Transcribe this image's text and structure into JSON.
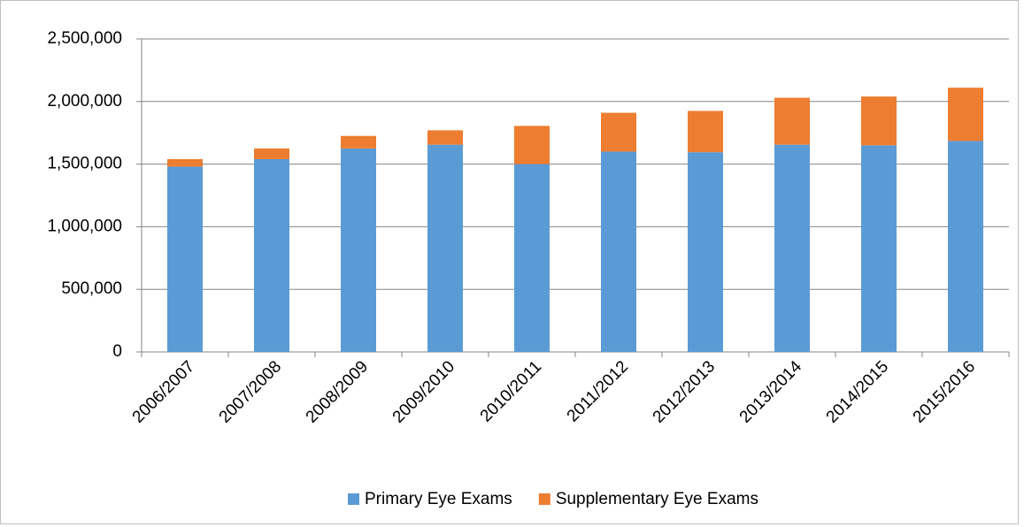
{
  "chart_data": {
    "type": "stacked-bar",
    "categories": [
      "2006/2007",
      "2007/2008",
      "2008/2009",
      "2009/2010",
      "2010/2011",
      "2011/2012",
      "2012/2013",
      "2013/2014",
      "2014/2015",
      "2015/2016"
    ],
    "series": [
      {
        "name": "Primary Eye Exams",
        "color": "#5b9bd5",
        "values": [
          1480000,
          1540000,
          1625000,
          1655000,
          1500000,
          1600000,
          1595000,
          1655000,
          1650000,
          1685000
        ]
      },
      {
        "name": "Supplementary Eye Exams",
        "color": "#ed7d31",
        "values": [
          60000,
          85000,
          100000,
          115000,
          305000,
          310000,
          330000,
          375000,
          390000,
          425000
        ]
      }
    ],
    "ylim": [
      0,
      2500000
    ],
    "yticks": [
      0,
      {
        "value": 500000,
        "label": "500,000"
      },
      {
        "value": 1000000,
        "label": "1,000,000"
      },
      {
        "value": 1500000,
        "label": "1,500,000"
      },
      {
        "value": 2000000,
        "label": "2,000,000"
      },
      {
        "value": 2500000,
        "label": "2,500,000"
      }
    ],
    "grid": true,
    "legend": "bottom"
  }
}
